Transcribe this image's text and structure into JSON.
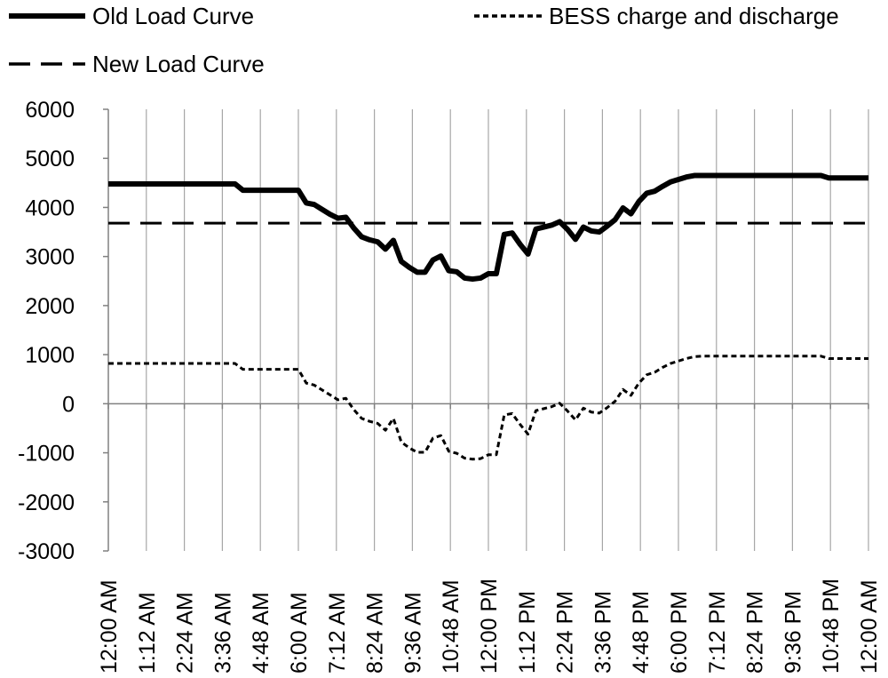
{
  "chart_data": {
    "type": "line",
    "title": "",
    "xlabel": "",
    "ylabel": "",
    "ylim": [
      -3000,
      6000
    ],
    "ytick_step": 1000,
    "y_ticks": [
      "6000",
      "5000",
      "4000",
      "3000",
      "2000",
      "1000",
      "0",
      "-1000",
      "-2000",
      "-3000"
    ],
    "x_tick_labels": [
      "12:00 AM",
      "1:12 AM",
      "2:24 AM",
      "3:36 AM",
      "4:48 AM",
      "6:00 AM",
      "7:12 AM",
      "8:24 AM",
      "9:36 AM",
      "10:48 AM",
      "12:00 PM",
      "1:12 PM",
      "2:24 PM",
      "3:36 PM",
      "4:48 PM",
      "6:00 PM",
      "7:12 PM",
      "8:24 PM",
      "9:36 PM",
      "10:48 PM",
      "12:00 AM"
    ],
    "x_unit_minutes": 1440,
    "grid": "vertical",
    "legend_position": "top",
    "x": [
      0,
      15,
      30,
      45,
      60,
      75,
      90,
      105,
      120,
      135,
      150,
      165,
      180,
      195,
      210,
      225,
      240,
      255,
      270,
      285,
      300,
      315,
      330,
      345,
      360,
      375,
      390,
      405,
      420,
      435,
      450,
      465,
      480,
      495,
      510,
      525,
      540,
      555,
      570,
      585,
      600,
      615,
      630,
      645,
      660,
      675,
      690,
      705,
      720,
      735,
      750,
      765,
      780,
      795,
      810,
      825,
      840,
      855,
      870,
      885,
      900,
      915,
      930,
      945,
      960,
      975,
      990,
      1005,
      1020,
      1035,
      1050,
      1065,
      1080,
      1095,
      1110,
      1125,
      1140,
      1155,
      1170,
      1185,
      1200,
      1215,
      1230,
      1245,
      1260,
      1275,
      1290,
      1305,
      1320,
      1335,
      1350,
      1365,
      1380,
      1395,
      1410,
      1425,
      1440
    ],
    "series": [
      {
        "name": "Old Load Curve",
        "style": "solid",
        "color": "#000000",
        "values": [
          4480,
          4480,
          4480,
          4480,
          4480,
          4480,
          4480,
          4480,
          4480,
          4480,
          4480,
          4480,
          4480,
          4480,
          4480,
          4480,
          4480,
          4350,
          4350,
          4350,
          4350,
          4350,
          4350,
          4350,
          4350,
          4090,
          4060,
          3960,
          3860,
          3780,
          3800,
          3580,
          3400,
          3340,
          3300,
          3150,
          3330,
          2900,
          2780,
          2680,
          2680,
          2930,
          3010,
          2710,
          2690,
          2560,
          2540,
          2560,
          2650,
          2650,
          3450,
          3480,
          3250,
          3050,
          3560,
          3600,
          3640,
          3710,
          3550,
          3350,
          3600,
          3520,
          3500,
          3620,
          3750,
          3990,
          3870,
          4120,
          4290,
          4330,
          4430,
          4520,
          4570,
          4620,
          4650,
          4650,
          4650,
          4650,
          4650,
          4650,
          4650,
          4650,
          4650,
          4650,
          4650,
          4650,
          4650,
          4650,
          4650,
          4650,
          4650,
          4600,
          4600,
          4600,
          4600,
          4600,
          4600
        ]
      },
      {
        "name": "BESS charge and discharge",
        "style": "dotted",
        "color": "#000000",
        "values": [
          820,
          820,
          820,
          820,
          820,
          820,
          820,
          820,
          820,
          820,
          820,
          820,
          820,
          820,
          820,
          820,
          820,
          700,
          700,
          700,
          700,
          700,
          700,
          700,
          700,
          420,
          380,
          280,
          180,
          80,
          110,
          -120,
          -300,
          -360,
          -400,
          -540,
          -300,
          -780,
          -900,
          -990,
          -990,
          -700,
          -650,
          -970,
          -1010,
          -1110,
          -1130,
          -1120,
          -1040,
          -1040,
          -230,
          -200,
          -420,
          -620,
          -140,
          -100,
          -60,
          10,
          -150,
          -330,
          -90,
          -170,
          -190,
          -80,
          50,
          290,
          170,
          420,
          590,
          640,
          740,
          820,
          870,
          920,
          960,
          970,
          970,
          970,
          970,
          970,
          970,
          970,
          970,
          970,
          970,
          970,
          970,
          970,
          970,
          970,
          970,
          920,
          920,
          920,
          920,
          920,
          920
        ]
      },
      {
        "name": "New Load Curve",
        "style": "dashed",
        "color": "#000000",
        "values": [
          3680,
          3680,
          3680,
          3680,
          3680,
          3680,
          3680,
          3680,
          3680,
          3680,
          3680,
          3680,
          3680,
          3680,
          3680,
          3680,
          3680,
          3680,
          3680,
          3680,
          3680,
          3680,
          3680,
          3680,
          3680,
          3680,
          3680,
          3680,
          3680,
          3680,
          3680,
          3680,
          3680,
          3680,
          3680,
          3680,
          3680,
          3680,
          3680,
          3680,
          3680,
          3680,
          3680,
          3680,
          3680,
          3680,
          3680,
          3680,
          3680,
          3680,
          3680,
          3680,
          3680,
          3680,
          3680,
          3680,
          3680,
          3680,
          3680,
          3680,
          3680,
          3680,
          3680,
          3680,
          3680,
          3680,
          3680,
          3680,
          3680,
          3680,
          3680,
          3680,
          3680,
          3680,
          3680,
          3680,
          3680,
          3680,
          3680,
          3680,
          3680,
          3680,
          3680,
          3680,
          3680,
          3680,
          3680,
          3680,
          3680,
          3680,
          3680,
          3680,
          3680,
          3680,
          3680,
          3680,
          3680
        ]
      }
    ]
  }
}
